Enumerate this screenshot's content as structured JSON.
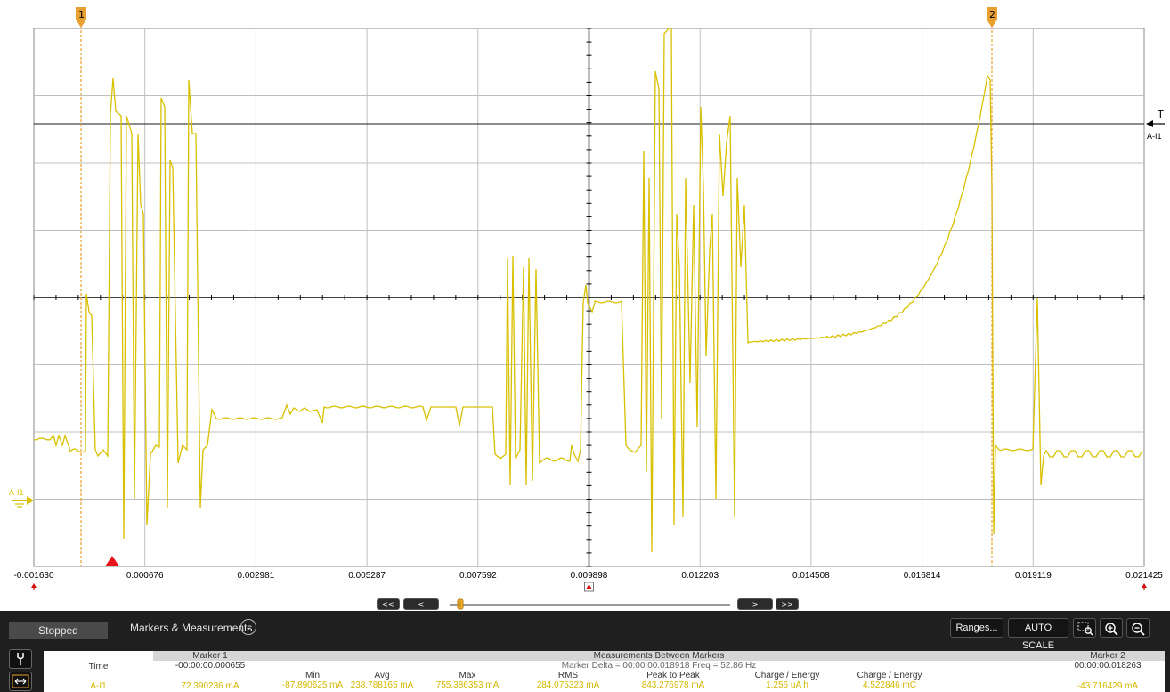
{
  "plot": {
    "channel_label": "A-I1",
    "trigger_label": "T",
    "trigger_channel": "A-I1",
    "marker1_label": "1",
    "marker2_label": "2",
    "x_tick_labels": [
      "-0.001630",
      "0.000676",
      "0.002981",
      "0.005287",
      "0.007592",
      "0.009898",
      "0.012203",
      "0.014508",
      "0.016814",
      "0.019119",
      "0.021425"
    ],
    "trace_color": "#d8c000",
    "marker_color": "#e8a030",
    "grid_color": "#bfbfbf"
  },
  "nav": {
    "rewind_fast": "<<",
    "rewind": "<",
    "forward": ">",
    "forward_fast": ">>"
  },
  "panel": {
    "status": "Stopped",
    "markers_measurements": "Markers & Measurements",
    "ranges_button": "Ranges...",
    "autoscale_button": "AUTO SCALE"
  },
  "measurements": {
    "marker1": {
      "header": "Marker 1",
      "time": "-00:00:00.000655",
      "value": "72.390236 mA"
    },
    "marker2": {
      "header": "Marker 2",
      "time": "00:00:00.018263",
      "value": "-43.716429 mA"
    },
    "row_time_label": "Time",
    "row_channel_label": "A-I1",
    "between": {
      "header": "Measurements Between Markers",
      "delta": "Marker Delta = 00:00:00.018918   Freq = 52.86 Hz",
      "columns": [
        {
          "label": "Min",
          "value": "-87.890625 mA"
        },
        {
          "label": "Avg",
          "value": "238.788165 mA"
        },
        {
          "label": "Max",
          "value": "755.386353 mA"
        },
        {
          "label": "RMS",
          "value": "284.075323 mA"
        },
        {
          "label": "Peak to Peak",
          "value": "843.276978 mA"
        },
        {
          "label": "Charge / Energy",
          "value": "1.256 uA h"
        },
        {
          "label": "Charge / Energy",
          "value": "4.522846 mC"
        }
      ]
    }
  }
}
